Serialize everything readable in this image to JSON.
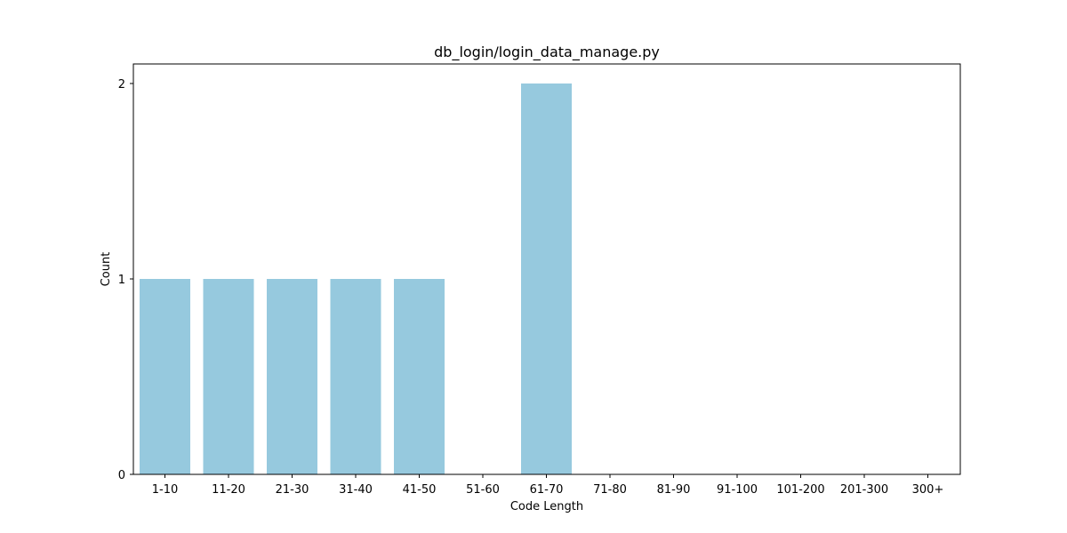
{
  "chart_data": {
    "type": "bar",
    "title": "db_login/login_data_manage.py",
    "xlabel": "Code Length",
    "ylabel": "Count",
    "categories": [
      "1-10",
      "11-20",
      "21-30",
      "31-40",
      "41-50",
      "51-60",
      "61-70",
      "71-80",
      "81-90",
      "91-100",
      "101-200",
      "201-300",
      "300+"
    ],
    "values": [
      1,
      1,
      1,
      1,
      1,
      0,
      2,
      0,
      0,
      0,
      0,
      0,
      0
    ],
    "ylim": [
      0,
      2.1
    ],
    "yticks": [
      "0",
      "1",
      "2"
    ],
    "grid": false,
    "bar_color": "#96c9de"
  }
}
